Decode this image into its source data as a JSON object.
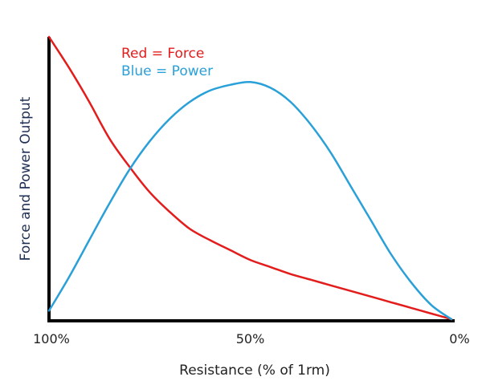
{
  "chart_data": {
    "type": "line",
    "xlabel": "Resistance (% of 1rm)",
    "ylabel": "Force and Power Output",
    "x_reversed": true,
    "xlim": [
      0,
      100
    ],
    "ylim": [
      0,
      1
    ],
    "x_ticks": [
      {
        "value": 100,
        "label": "100%"
      },
      {
        "value": 50,
        "label": "50%"
      },
      {
        "value": 0,
        "label": "0%"
      }
    ],
    "grid": false,
    "legend": {
      "placement": "top-left",
      "entries": [
        {
          "text": "Red = Force",
          "color": "#e31c1c"
        },
        {
          "text": "Blue = Power",
          "color": "#2aa0d8"
        }
      ]
    },
    "series": [
      {
        "color": "#e31c1c",
        "points": [
          {
            "x": 100,
            "y": 1.0
          },
          {
            "x": 95,
            "y": 0.89
          },
          {
            "x": 90,
            "y": 0.77
          },
          {
            "x": 85,
            "y": 0.64
          },
          {
            "x": 80,
            "y": 0.54
          },
          {
            "x": 75,
            "y": 0.45
          },
          {
            "x": 70,
            "y": 0.38
          },
          {
            "x": 65,
            "y": 0.32
          },
          {
            "x": 60,
            "y": 0.28
          },
          {
            "x": 55,
            "y": 0.245
          },
          {
            "x": 50,
            "y": 0.21
          },
          {
            "x": 45,
            "y": 0.185
          },
          {
            "x": 40,
            "y": 0.16
          },
          {
            "x": 35,
            "y": 0.14
          },
          {
            "x": 30,
            "y": 0.12
          },
          {
            "x": 25,
            "y": 0.1
          },
          {
            "x": 20,
            "y": 0.08
          },
          {
            "x": 15,
            "y": 0.06
          },
          {
            "x": 10,
            "y": 0.04
          },
          {
            "x": 5,
            "y": 0.02
          },
          {
            "x": 0,
            "y": 0.0
          }
        ]
      },
      {
        "color": "#2aa0d8",
        "points": [
          {
            "x": 100,
            "y": 0.03
          },
          {
            "x": 95,
            "y": 0.15
          },
          {
            "x": 90,
            "y": 0.28
          },
          {
            "x": 85,
            "y": 0.41
          },
          {
            "x": 80,
            "y": 0.53
          },
          {
            "x": 75,
            "y": 0.63
          },
          {
            "x": 70,
            "y": 0.71
          },
          {
            "x": 65,
            "y": 0.77
          },
          {
            "x": 60,
            "y": 0.81
          },
          {
            "x": 55,
            "y": 0.83
          },
          {
            "x": 50,
            "y": 0.84
          },
          {
            "x": 45,
            "y": 0.82
          },
          {
            "x": 40,
            "y": 0.77
          },
          {
            "x": 35,
            "y": 0.69
          },
          {
            "x": 30,
            "y": 0.59
          },
          {
            "x": 25,
            "y": 0.47
          },
          {
            "x": 20,
            "y": 0.35
          },
          {
            "x": 15,
            "y": 0.23
          },
          {
            "x": 10,
            "y": 0.13
          },
          {
            "x": 5,
            "y": 0.05
          },
          {
            "x": 0,
            "y": 0.0
          }
        ]
      }
    ]
  }
}
